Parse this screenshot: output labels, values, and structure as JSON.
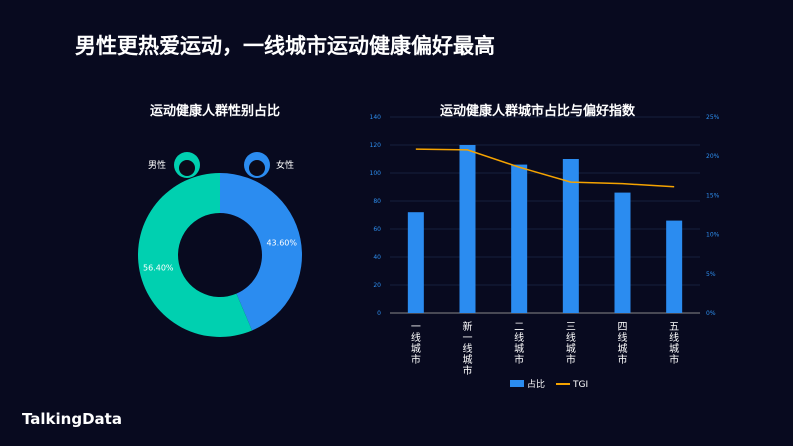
{
  "title": "男性更热爱运动，一线城市运动健康偏好最高",
  "logo": "TalkingData",
  "chart_data": [
    {
      "type": "pie",
      "title": "运动健康人群性别占比",
      "donut": true,
      "slices": [
        {
          "name": "男性",
          "value": 56.4,
          "label": "56.40%",
          "color": "#00d0b0"
        },
        {
          "name": "女性",
          "value": 43.6,
          "label": "43.60%",
          "color": "#2b8cf0"
        }
      ]
    },
    {
      "type": "bar",
      "title": "运动健康人群城市占比与偏好指数",
      "categories": [
        "一线城市",
        "新一线城市",
        "二线城市",
        "三线城市",
        "四线城市",
        "五线城市"
      ],
      "series": [
        {
          "name": "占比",
          "type": "bar",
          "color": "#2b8cf0",
          "values": [
            72,
            120,
            106,
            110,
            86,
            66
          ]
        },
        {
          "name": "TGI",
          "type": "line",
          "axis": "right",
          "color": "#f5a300",
          "values": [
            20.9,
            20.8,
            18.6,
            16.7,
            16.5,
            16.1
          ]
        }
      ],
      "ylim": [
        0,
        140
      ],
      "yticks": [
        "0",
        "20",
        "40",
        "60",
        "80",
        "100",
        "120",
        "140"
      ],
      "y2lim": [
        0,
        25
      ],
      "y2ticks": [
        "0%",
        "5%",
        "10%",
        "15%",
        "20%",
        "25%"
      ],
      "grid": true,
      "legend": "bottom"
    }
  ]
}
